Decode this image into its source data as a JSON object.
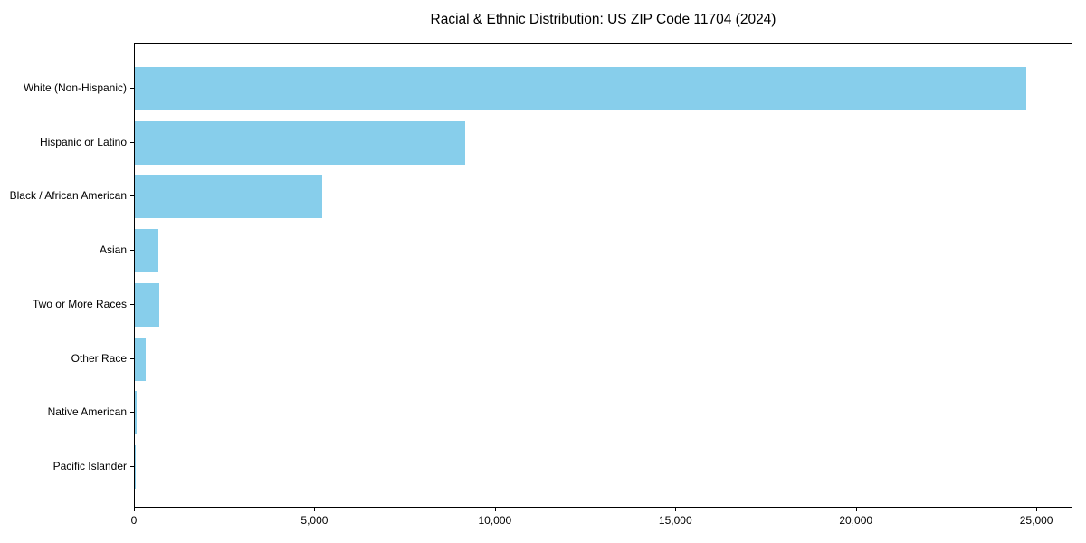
{
  "chart_data": {
    "type": "bar",
    "orientation": "horizontal",
    "title": "Racial & Ethnic Distribution: US ZIP Code 11704 (2024)",
    "categories": [
      "White (Non-Hispanic)",
      "Hispanic or Latino",
      "Black / African American",
      "Asian",
      "Two or More Races",
      "Other Race",
      "Native American",
      "Pacific Islander"
    ],
    "values": [
      24700,
      9140,
      5200,
      640,
      670,
      290,
      40,
      15
    ],
    "xlim": [
      0,
      25950
    ],
    "x_ticks": [
      0,
      5000,
      10000,
      15000,
      20000,
      25000
    ],
    "x_tick_labels": [
      "0",
      "5,000",
      "10,000",
      "15,000",
      "20,000",
      "25,000"
    ],
    "xlabel": "",
    "ylabel": "",
    "grid": false,
    "legend": null,
    "bar_color": "#87CEEB",
    "frame_color": "#000000",
    "background_color": "#ffffff"
  }
}
